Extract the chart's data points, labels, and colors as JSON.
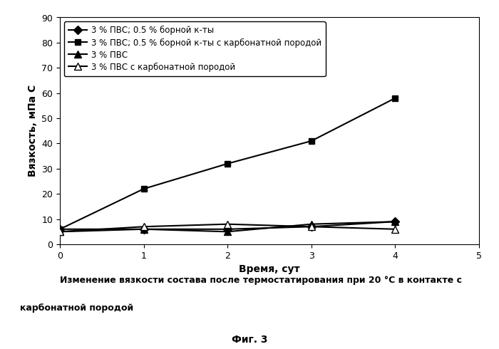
{
  "x": [
    0,
    1,
    2,
    3,
    4
  ],
  "series": [
    {
      "label": "3 % ПВС; 0.5 % борной к-ты",
      "y": [
        6.0,
        6.0,
        6.0,
        7.0,
        9.0
      ],
      "color": "#000000",
      "marker": "D",
      "markersize": 6,
      "markerfacecolor": "#000000",
      "linestyle": "-",
      "linewidth": 1.5
    },
    {
      "label": "3 % ПВС; 0.5 % борной к-ты с карбонатной породой",
      "y": [
        6.0,
        22.0,
        32.0,
        41.0,
        58.0
      ],
      "color": "#000000",
      "marker": "s",
      "markersize": 6,
      "markerfacecolor": "#000000",
      "linestyle": "-",
      "linewidth": 1.5
    },
    {
      "label": "3 % ПВС",
      "y": [
        5.0,
        6.0,
        5.0,
        8.0,
        9.0
      ],
      "color": "#000000",
      "marker": "^",
      "markersize": 7,
      "markerfacecolor": "#000000",
      "linestyle": "-",
      "linewidth": 1.5
    },
    {
      "label": "3 % ПВС с карбонатной породой",
      "y": [
        5.0,
        7.0,
        8.0,
        7.0,
        6.0
      ],
      "color": "#000000",
      "marker": "^",
      "markersize": 7,
      "markerfacecolor": "#ffffff",
      "linestyle": "-",
      "linewidth": 1.5
    }
  ],
  "xlabel": "Время, сут",
  "ylabel": "Вязкость, мПа С",
  "xlim": [
    0,
    5
  ],
  "ylim": [
    0,
    90
  ],
  "yticks": [
    0,
    10,
    20,
    30,
    40,
    50,
    60,
    70,
    80,
    90
  ],
  "xticks": [
    0,
    1,
    2,
    3,
    4,
    5
  ],
  "caption_line1": "Изменение вязкости состава после термостатирования при 20 °C в контакте с",
  "caption_line2": "карбонатной породой",
  "fig_label": "Фиг. 3",
  "background_color": "#ffffff",
  "legend_fontsize": 8.5,
  "axis_label_fontsize": 10,
  "tick_fontsize": 9,
  "caption_fontsize": 9,
  "figlabel_fontsize": 10
}
